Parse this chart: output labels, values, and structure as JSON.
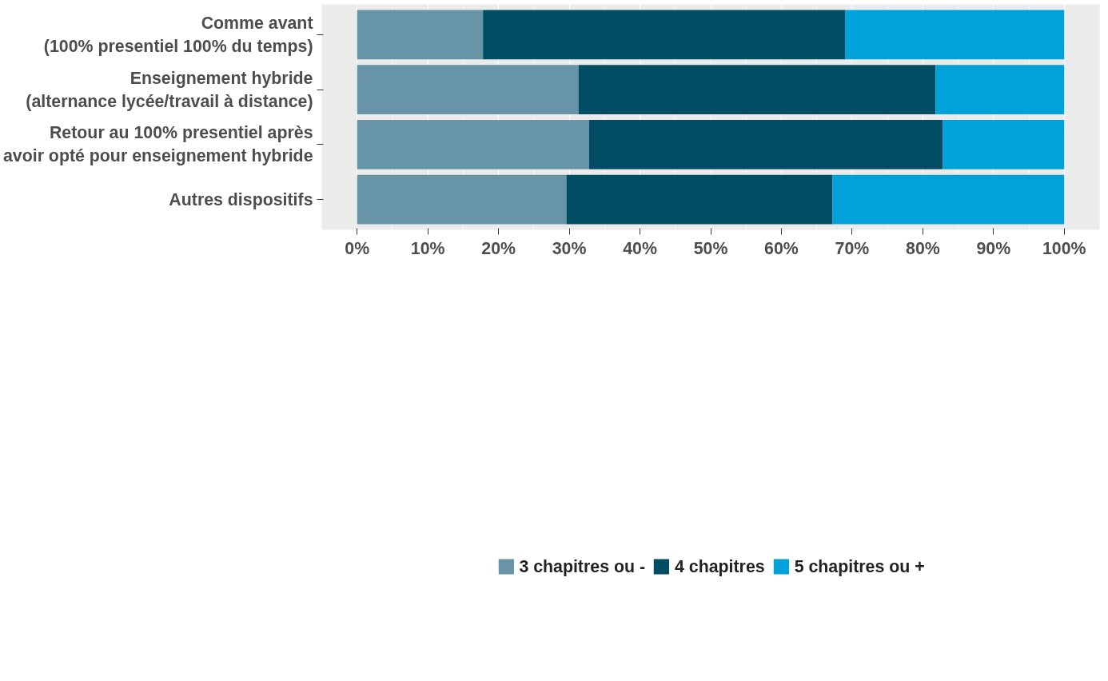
{
  "chart_data": {
    "type": "bar",
    "orientation": "horizontal",
    "stacked": true,
    "categories": [
      "Comme avant\n(100% presentiel 100% du temps)",
      "Enseignement hybride\n(alternance lycée/travail à distance)",
      "Retour au 100% presentiel après\navoir opté pour enseignement hybride",
      "Autres dispositifs"
    ],
    "series": [
      {
        "name": "3 chapitres ou -",
        "color": "#6794a7",
        "values": [
          17.8,
          31.3,
          32.8,
          29.6
        ]
      },
      {
        "name": "4 chapitres",
        "color": "#014d64",
        "values": [
          51.2,
          50.5,
          50.0,
          37.6
        ]
      },
      {
        "name": "5 chapitres ou +",
        "color": "#01a2d9",
        "values": [
          31.0,
          18.2,
          17.2,
          32.8
        ]
      }
    ],
    "xlim": [
      -5,
      105
    ],
    "xticks": [
      {
        "value": 0,
        "label": "0%"
      },
      {
        "value": 10,
        "label": "10%"
      },
      {
        "value": 20,
        "label": "20%"
      },
      {
        "value": 30,
        "label": "30%"
      },
      {
        "value": 40,
        "label": "40%"
      },
      {
        "value": 50,
        "label": "50%"
      },
      {
        "value": 60,
        "label": "60%"
      },
      {
        "value": 70,
        "label": "70%"
      },
      {
        "value": 80,
        "label": "80%"
      },
      {
        "value": 90,
        "label": "90%"
      },
      {
        "value": 100,
        "label": "100%"
      }
    ],
    "grid": "x",
    "legend": "bottom"
  }
}
